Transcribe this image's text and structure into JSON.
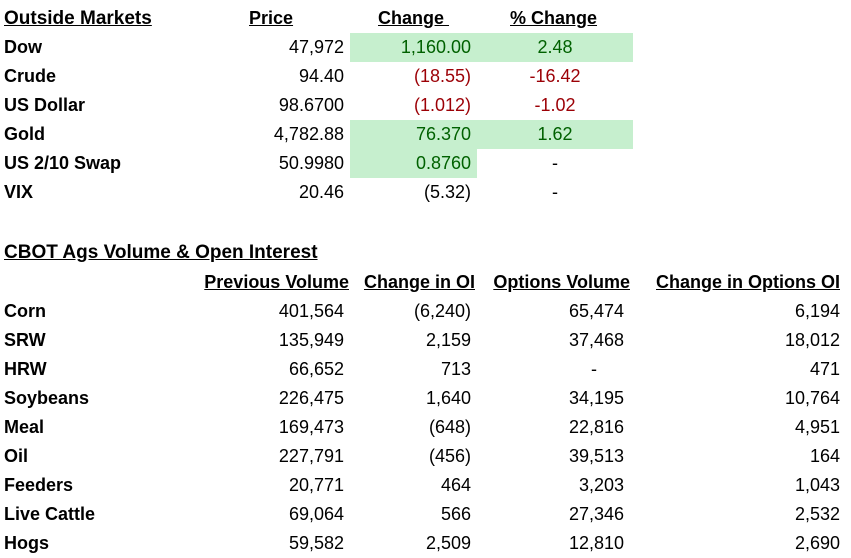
{
  "outside": {
    "title": "Outside Markets",
    "headers": {
      "price": "Price",
      "change": "Change ",
      "pct": "% Change"
    },
    "rows": [
      {
        "name": "Dow",
        "price": "47,972",
        "change": "1,160.00",
        "pct": "2.48"
      },
      {
        "name": "Crude",
        "price": "94.40",
        "change": "(18.55)",
        "pct": "-16.42"
      },
      {
        "name": "US Dollar",
        "price": "98.6700",
        "change": "(1.012)",
        "pct": "-1.02"
      },
      {
        "name": "Gold",
        "price": "4,782.88",
        "change": "76.370",
        "pct": "1.62"
      },
      {
        "name": "US 2/10 Swap",
        "price": "50.9980",
        "change": "0.8760",
        "pct": "-"
      },
      {
        "name": "VIX",
        "price": "20.46",
        "change": "(5.32)",
        "pct": "-"
      }
    ]
  },
  "cbot": {
    "title": "CBOT Ags Volume & Open Interest",
    "headers": {
      "prev_volume": "Previous Volume",
      "change_oi": "Change in OI",
      "options_volume": "Options Volume",
      "change_options_oi": "Change in Options OI"
    },
    "rows": [
      {
        "name": "Corn",
        "prev_volume": "401,564",
        "change_oi": "(6,240)",
        "options_volume": "65,474",
        "change_options_oi": "6,194"
      },
      {
        "name": "SRW",
        "prev_volume": "135,949",
        "change_oi": "2,159",
        "options_volume": "37,468",
        "change_options_oi": "18,012"
      },
      {
        "name": "HRW",
        "prev_volume": "66,652",
        "change_oi": "713",
        "options_volume": "-",
        "change_options_oi": "471"
      },
      {
        "name": "Soybeans",
        "prev_volume": "226,475",
        "change_oi": "1,640",
        "options_volume": "34,195",
        "change_options_oi": "10,764"
      },
      {
        "name": "Meal",
        "prev_volume": "169,473",
        "change_oi": "(648)",
        "options_volume": "22,816",
        "change_options_oi": "4,951"
      },
      {
        "name": "Oil",
        "prev_volume": "227,791",
        "change_oi": "(456)",
        "options_volume": "39,513",
        "change_options_oi": "164"
      },
      {
        "name": "Feeders",
        "prev_volume": "20,771",
        "change_oi": "464",
        "options_volume": "3,203",
        "change_options_oi": "1,043"
      },
      {
        "name": "Live Cattle",
        "prev_volume": "69,064",
        "change_oi": "566",
        "options_volume": "27,346",
        "change_options_oi": "2,532"
      },
      {
        "name": "Hogs",
        "prev_volume": "59,582",
        "change_oi": "2,509",
        "options_volume": "12,810",
        "change_options_oi": "2,690"
      }
    ]
  }
}
